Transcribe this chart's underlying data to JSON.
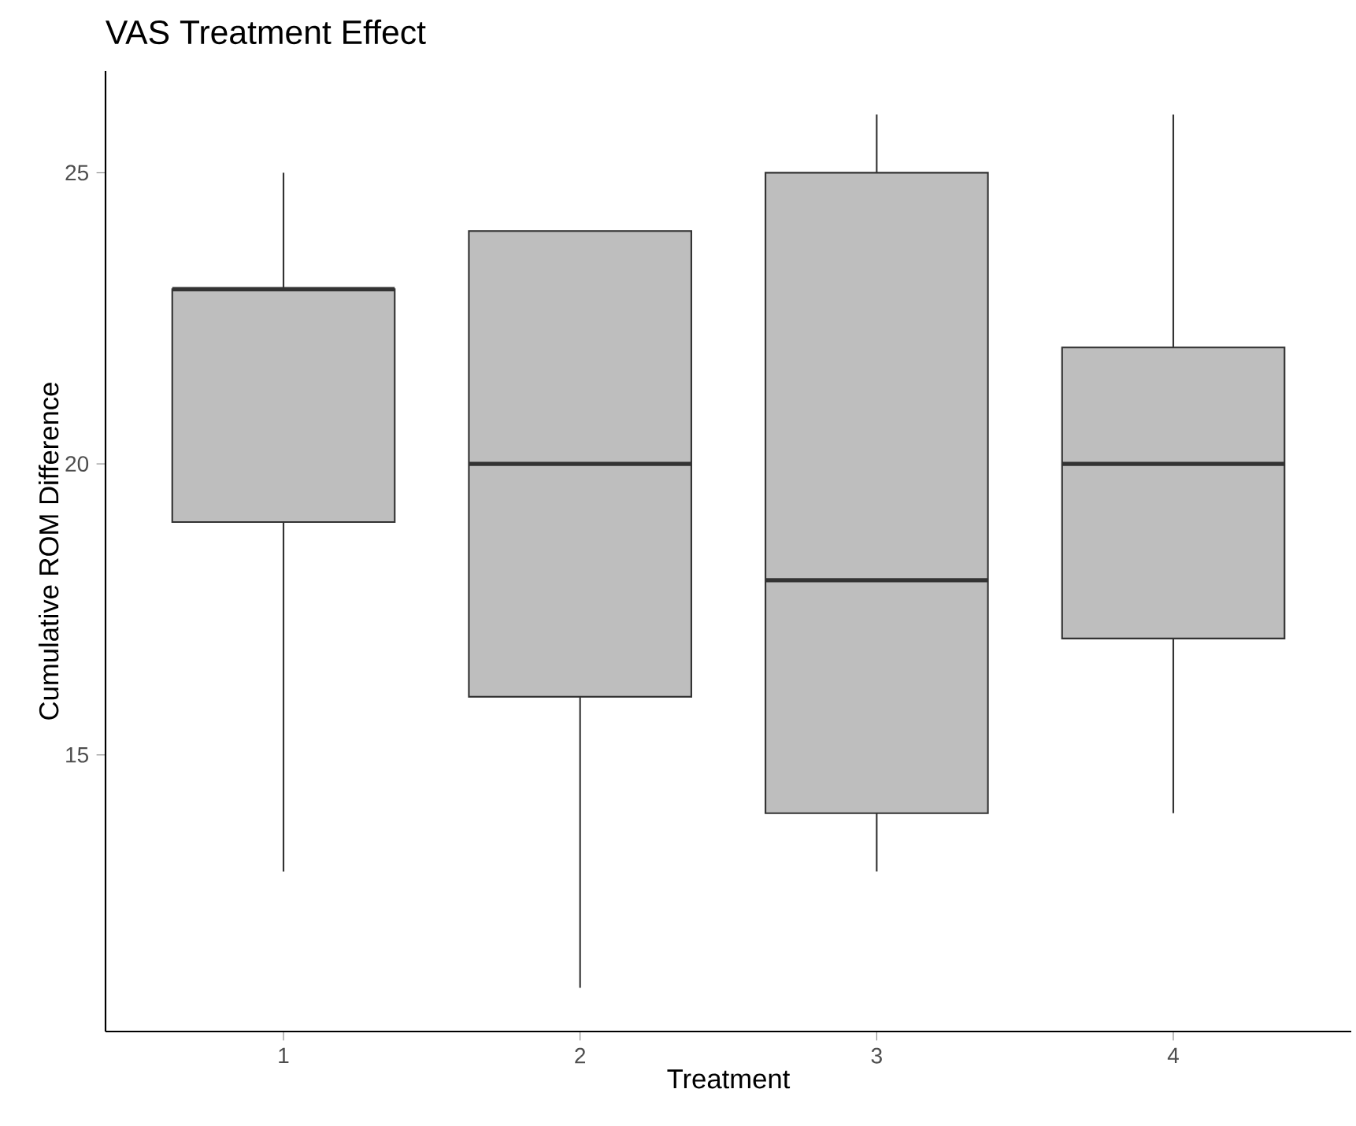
{
  "chart_data": {
    "type": "box",
    "title": "VAS Treatment Effect",
    "xlabel": "Treatment",
    "ylabel": "Cumulative ROM Difference",
    "categories": [
      "1",
      "2",
      "3",
      "4"
    ],
    "boxes": [
      {
        "low": 13,
        "q1": 19,
        "median": 23,
        "q3": 23,
        "high": 25
      },
      {
        "low": 11,
        "q1": 16,
        "median": 20,
        "q3": 24,
        "high": 24
      },
      {
        "low": 13,
        "q1": 14,
        "median": 18,
        "q3": 25,
        "high": 26
      },
      {
        "low": 14,
        "q1": 17,
        "median": 20,
        "q3": 22,
        "high": 26
      }
    ],
    "color": "#bebebe",
    "ylim": [
      10.25,
      26.75
    ],
    "yticks": [
      15,
      20,
      25
    ],
    "grid": false
  }
}
